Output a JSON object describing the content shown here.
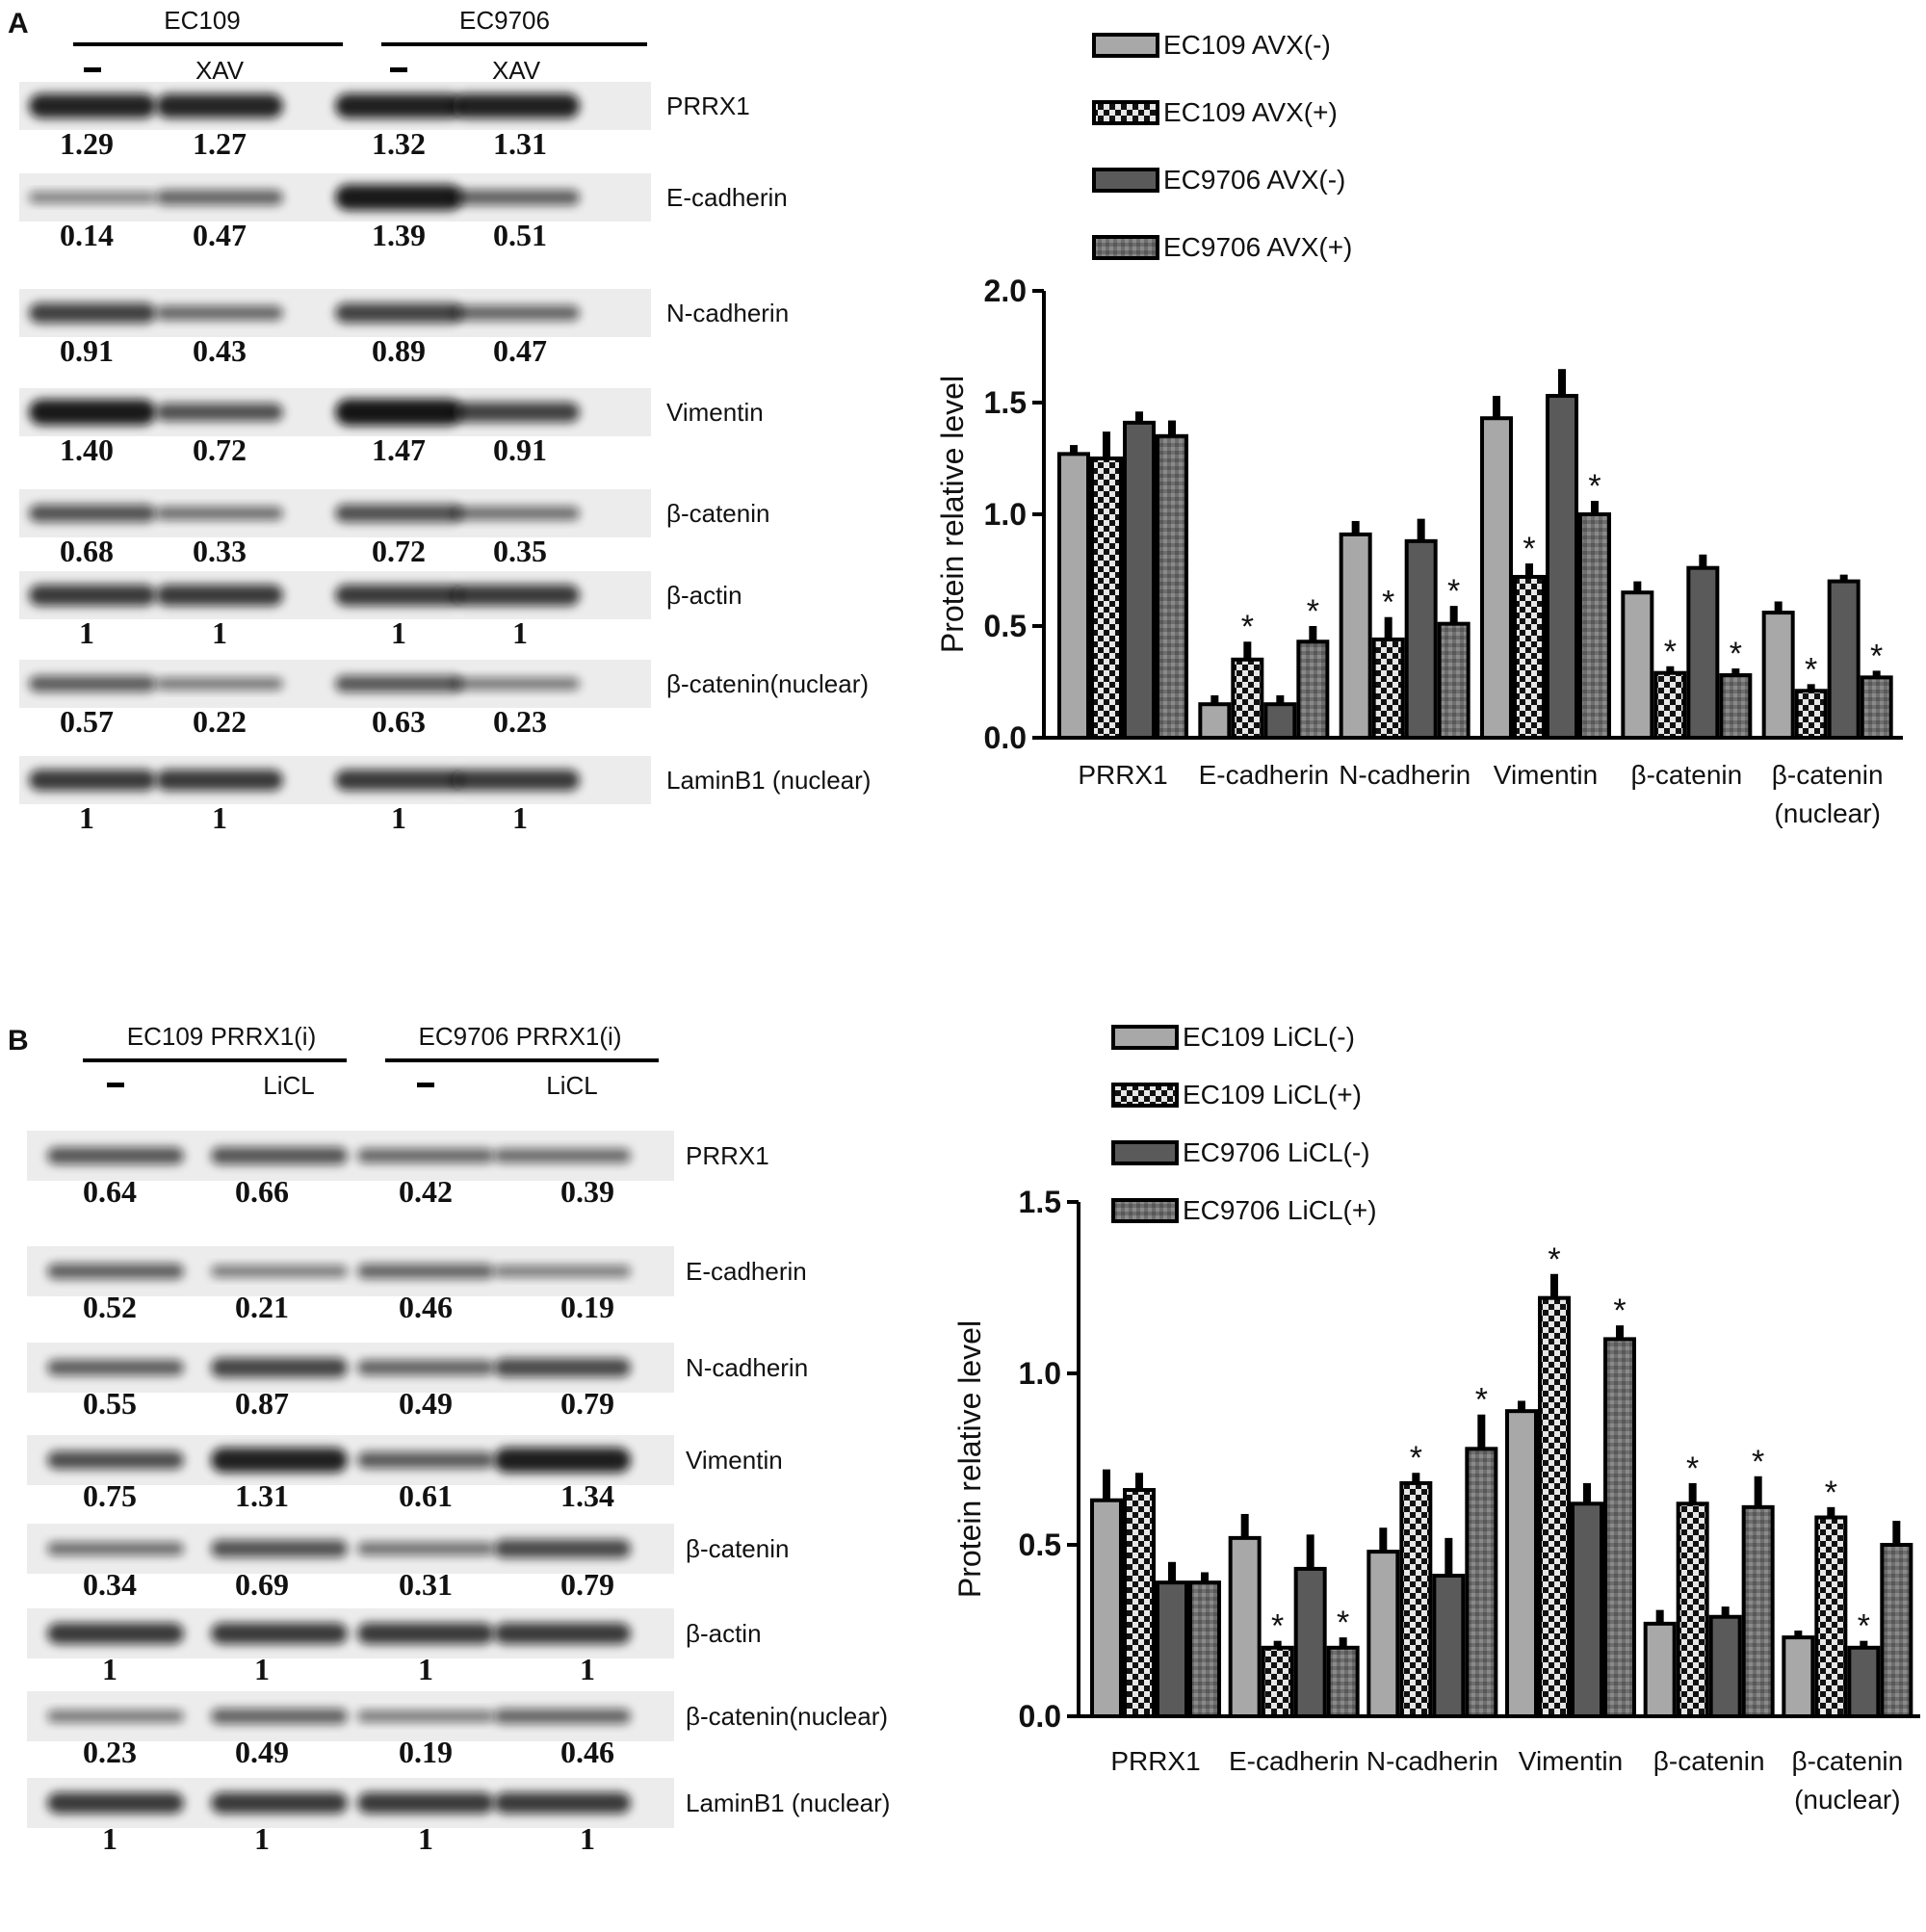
{
  "figure": {
    "panels": [
      {
        "letter": "A",
        "blot": {
          "groups": [
            "EC109",
            "EC9706"
          ],
          "conditions": [
            "–",
            "XAV",
            "–",
            "XAV"
          ],
          "proteins": [
            {
              "label": "PRRX1",
              "values": [
                "1.29",
                "1.27",
                "1.32",
                "1.31"
              ]
            },
            {
              "label": "E-cadherin",
              "values": [
                "0.14",
                "0.47",
                "1.39",
                "0.51"
              ]
            },
            {
              "label": "N-cadherin",
              "values": [
                "0.91",
                "0.43",
                "0.89",
                "0.47"
              ]
            },
            {
              "label": "Vimentin",
              "values": [
                "1.40",
                "0.72",
                "1.47",
                "0.91"
              ]
            },
            {
              "label": "β-catenin",
              "values": [
                "0.68",
                "0.33",
                "0.72",
                "0.35"
              ]
            },
            {
              "label": "β-actin",
              "values": [
                "1",
                "1",
                "1",
                "1"
              ]
            },
            {
              "label": "β-catenin(nuclear)",
              "values": [
                "0.57",
                "0.22",
                "0.63",
                "0.23"
              ]
            },
            {
              "label": "LaminB1 (nuclear)",
              "values": [
                "1",
                "1",
                "1",
                "1"
              ]
            }
          ]
        }
      },
      {
        "letter": "B",
        "blot": {
          "groups": [
            "EC109 PRRX1(i)",
            "EC9706 PRRX1(i)"
          ],
          "conditions": [
            "–",
            "LiCL",
            "–",
            "LiCL"
          ],
          "proteins": [
            {
              "label": "PRRX1",
              "values": [
                "0.64",
                "0.66",
                "0.42",
                "0.39"
              ]
            },
            {
              "label": "E-cadherin",
              "values": [
                "0.52",
                "0.21",
                "0.46",
                "0.19"
              ]
            },
            {
              "label": "N-cadherin",
              "values": [
                "0.55",
                "0.87",
                "0.49",
                "0.79"
              ]
            },
            {
              "label": "Vimentin",
              "values": [
                "0.75",
                "1.31",
                "0.61",
                "1.34"
              ]
            },
            {
              "label": "β-catenin",
              "values": [
                "0.34",
                "0.69",
                "0.31",
                "0.79"
              ]
            },
            {
              "label": "β-actin",
              "values": [
                "1",
                "1",
                "1",
                "1"
              ]
            },
            {
              "label": "β-catenin(nuclear)",
              "values": [
                "0.23",
                "0.49",
                "0.19",
                "0.46"
              ]
            },
            {
              "label": "LaminB1 (nuclear)",
              "values": [
                "1",
                "1",
                "1",
                "1"
              ]
            }
          ]
        }
      }
    ]
  },
  "chart_data": [
    {
      "type": "bar",
      "ylabel": "Protein relative level",
      "ylim": [
        0,
        2.0
      ],
      "yticks": [
        "0.0",
        "0.5",
        "1.0",
        "1.5",
        "2.0"
      ],
      "categories": [
        "PRRX1",
        "E-cadherin",
        "N-cadherin",
        "Vimentin",
        "β-catenin",
        "β-catenin (nuclear)"
      ],
      "category_lines": [
        [
          "PRRX1"
        ],
        [
          "E-cadherin"
        ],
        [
          "N-cadherin"
        ],
        [
          "Vimentin"
        ],
        [
          "β-catenin"
        ],
        [
          "β-catenin",
          "(nuclear)"
        ]
      ],
      "legend_position": "top-left",
      "series": [
        {
          "name": "EC109 AVX(-)",
          "style": "light",
          "values": [
            1.27,
            0.15,
            0.91,
            1.43,
            0.65,
            0.56
          ],
          "errors": [
            0.04,
            0.04,
            0.06,
            0.1,
            0.05,
            0.05
          ],
          "sig": [
            false,
            false,
            false,
            false,
            false,
            false
          ]
        },
        {
          "name": "EC109 AVX(+)",
          "style": "check",
          "values": [
            1.25,
            0.35,
            0.44,
            0.72,
            0.29,
            0.21
          ],
          "errors": [
            0.12,
            0.08,
            0.1,
            0.06,
            0.03,
            0.03
          ],
          "sig": [
            false,
            true,
            true,
            true,
            true,
            true
          ]
        },
        {
          "name": "EC9706 AVX(-)",
          "style": "dark",
          "values": [
            1.41,
            0.15,
            0.88,
            1.53,
            0.76,
            0.7
          ],
          "errors": [
            0.05,
            0.04,
            0.1,
            0.12,
            0.06,
            0.03
          ],
          "sig": [
            false,
            false,
            false,
            false,
            false,
            false
          ]
        },
        {
          "name": "EC9706 AVX(+)",
          "style": "dotted",
          "values": [
            1.35,
            0.43,
            0.51,
            1.0,
            0.28,
            0.27
          ],
          "errors": [
            0.07,
            0.07,
            0.08,
            0.06,
            0.03,
            0.03
          ],
          "sig": [
            false,
            true,
            true,
            true,
            true,
            true
          ]
        }
      ]
    },
    {
      "type": "bar",
      "ylabel": "Protein relative level",
      "ylim": [
        0,
        1.5
      ],
      "yticks": [
        "0.0",
        "0.5",
        "1.0",
        "1.5"
      ],
      "categories": [
        "PRRX1",
        "E-cadherin",
        "N-cadherin",
        "Vimentin",
        "β-catenin",
        "β-catenin (nuclear)"
      ],
      "category_lines": [
        [
          "PRRX1"
        ],
        [
          "E-cadherin"
        ],
        [
          "N-cadherin"
        ],
        [
          "Vimentin"
        ],
        [
          "β-catenin"
        ],
        [
          "β-catenin",
          "(nuclear)"
        ]
      ],
      "legend_position": "top-left",
      "series": [
        {
          "name": "EC109 LiCL(-)",
          "style": "light",
          "values": [
            0.63,
            0.52,
            0.48,
            0.89,
            0.27,
            0.23
          ],
          "errors": [
            0.09,
            0.07,
            0.07,
            0.03,
            0.04,
            0.02
          ],
          "sig": [
            false,
            false,
            false,
            false,
            false,
            false
          ]
        },
        {
          "name": "EC109 LiCL(+)",
          "style": "check",
          "values": [
            0.66,
            0.2,
            0.68,
            1.22,
            0.62,
            0.58
          ],
          "errors": [
            0.05,
            0.02,
            0.03,
            0.07,
            0.06,
            0.03
          ],
          "sig": [
            false,
            true,
            true,
            true,
            true,
            true
          ]
        },
        {
          "name": "EC9706 LiCL(-)",
          "style": "dark",
          "values": [
            0.39,
            0.43,
            0.41,
            0.62,
            0.29,
            0.2
          ],
          "errors": [
            0.06,
            0.1,
            0.11,
            0.06,
            0.03,
            0.02
          ],
          "sig": [
            false,
            false,
            false,
            false,
            false,
            true
          ]
        },
        {
          "name": "EC9706 LiCL(+)",
          "style": "dotted",
          "values": [
            0.39,
            0.2,
            0.78,
            1.1,
            0.61,
            0.5
          ],
          "errors": [
            0.03,
            0.03,
            0.1,
            0.04,
            0.09,
            0.07
          ],
          "sig": [
            false,
            true,
            true,
            true,
            true,
            false
          ]
        }
      ]
    }
  ],
  "colors": {
    "light": "#a8a8a8",
    "dark": "#5a5a5a",
    "check_a": "#111111",
    "check_b": "#e6e6e6",
    "dotted": "#6e6e6e",
    "outline": "#000000"
  },
  "significance_mark": "*"
}
